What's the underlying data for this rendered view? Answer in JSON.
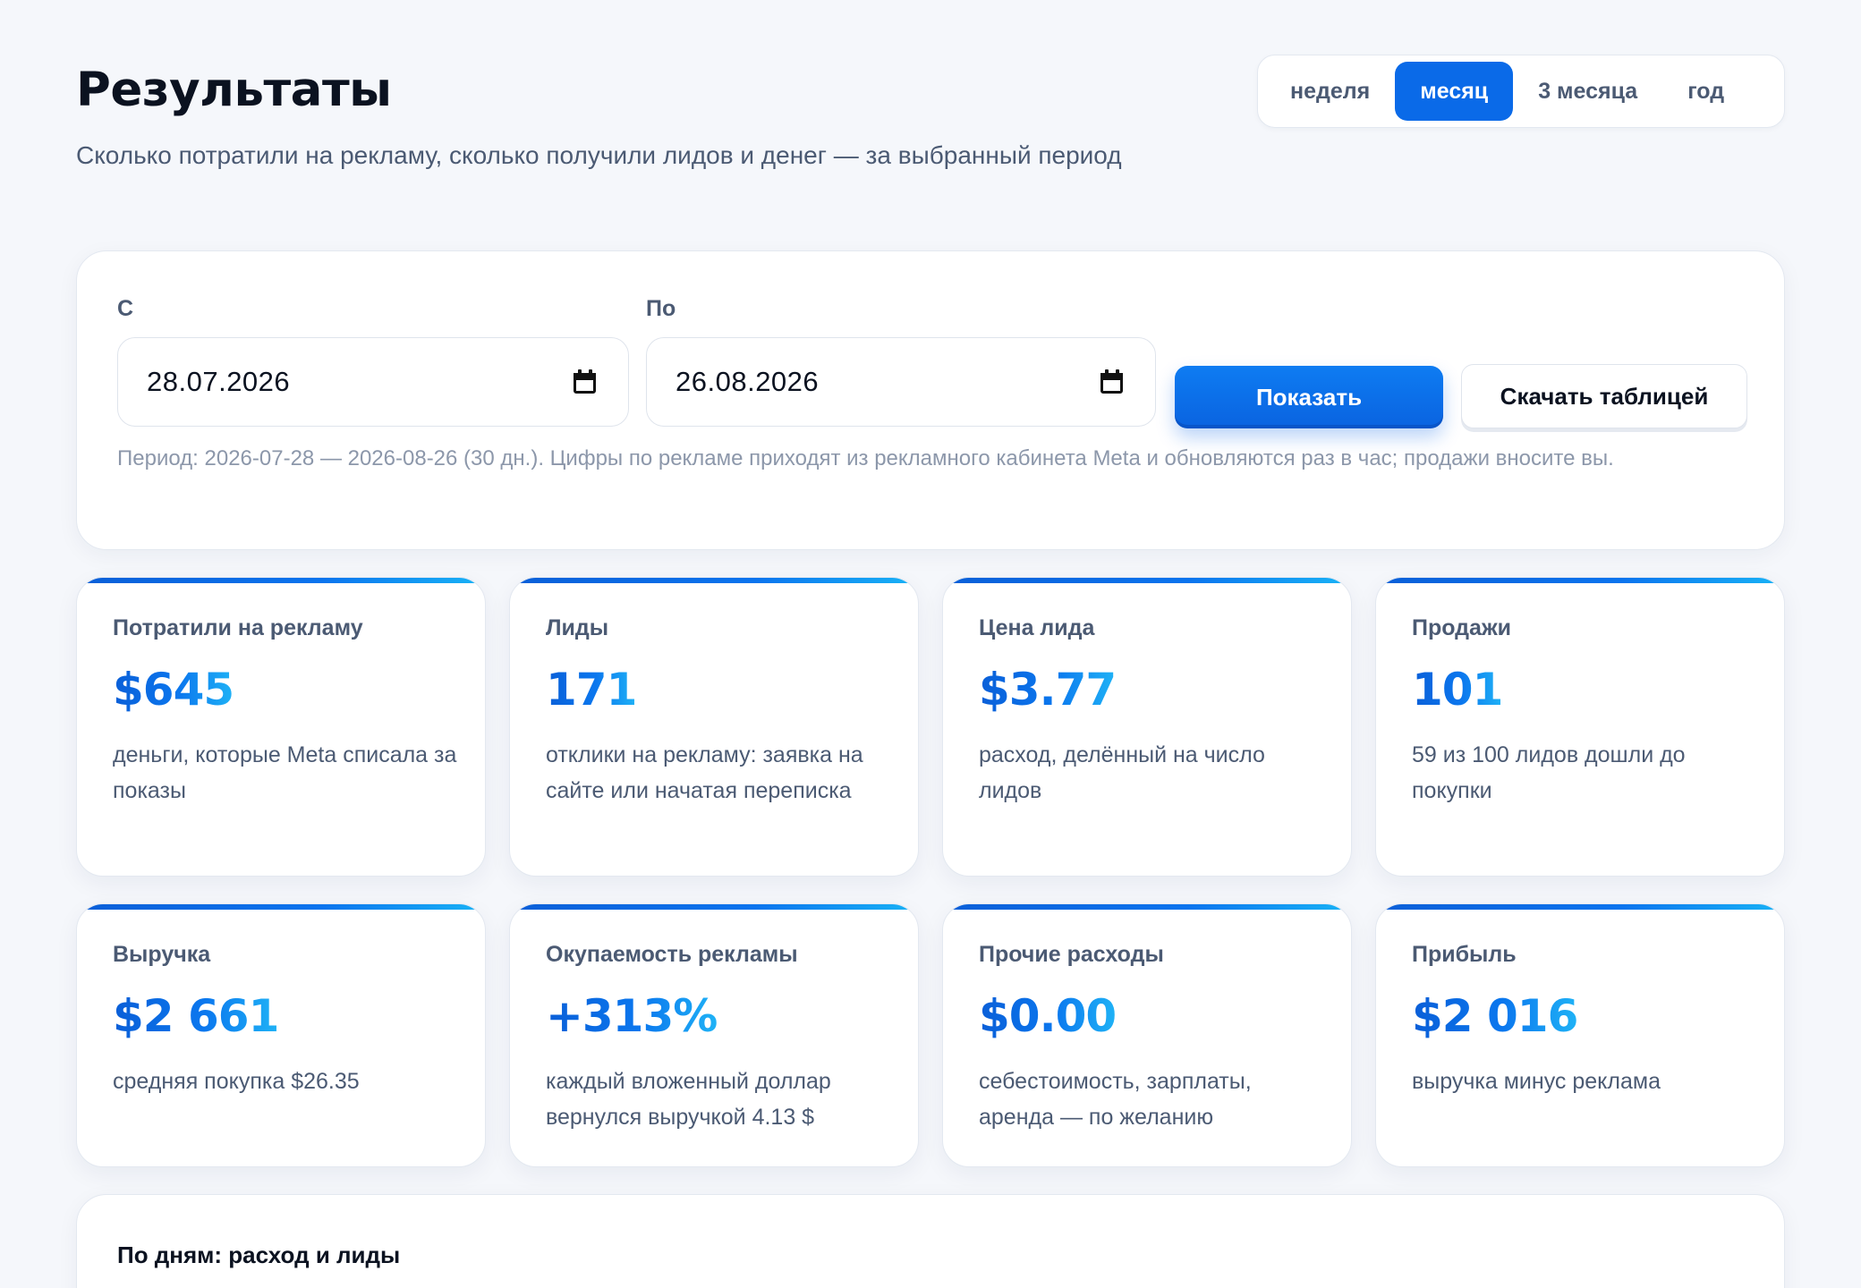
{
  "header": {
    "title": "Результаты",
    "subtitle": "Сколько потратили на рекламу, сколько получили лидов и денег — за выбранный период"
  },
  "period_switch": {
    "options": [
      "неделя",
      "месяц",
      "3 месяца",
      "год"
    ],
    "selected": "месяц"
  },
  "filter": {
    "from_label": "С",
    "from_value": "28.07.2026",
    "to_label": "По",
    "to_value": "26.08.2026",
    "show_button": "Показать",
    "download_button": "Скачать таблицей",
    "note": "Период: 2026-07-28 — 2026-08-26 (30 дн.). Цифры по рекламе приходят из рекламного кабинета Meta и обновляются раз в час; продажи вносите вы."
  },
  "metrics": [
    {
      "label": "Потратили на рекламу",
      "value": "$645",
      "desc": "деньги, которые Meta списала за показы"
    },
    {
      "label": "Лиды",
      "value": "171",
      "desc": "отклики на рекламу: заявка на сайте или начатая переписка"
    },
    {
      "label": "Цена лида",
      "value": "$3.77",
      "desc": "расход, делённый на число лидов"
    },
    {
      "label": "Продажи",
      "value": "101",
      "desc": "59 из 100 лидов дошли до покупки"
    },
    {
      "label": "Выручка",
      "value": "$2 661",
      "desc": "средняя покупка $26.35"
    },
    {
      "label": "Окупаемость рекламы",
      "value": "+313%",
      "desc": "каждый вложенный доллар вернулся выручкой 4.13 $"
    },
    {
      "label": "Прочие расходы",
      "value": "$0.00",
      "desc": "себестоимость, зарплаты, аренда — по желанию"
    },
    {
      "label": "Прибыль",
      "value": "$2 016",
      "desc": "выручка минус реклама"
    }
  ],
  "daily_chart": {
    "title": "По дням: расход и лиды"
  },
  "icons": {
    "date_picker": "calendar-icon"
  },
  "colors": {
    "accent": "#0a6ae8",
    "background": "#f5f7fb",
    "text_muted": "#4b5a73"
  }
}
